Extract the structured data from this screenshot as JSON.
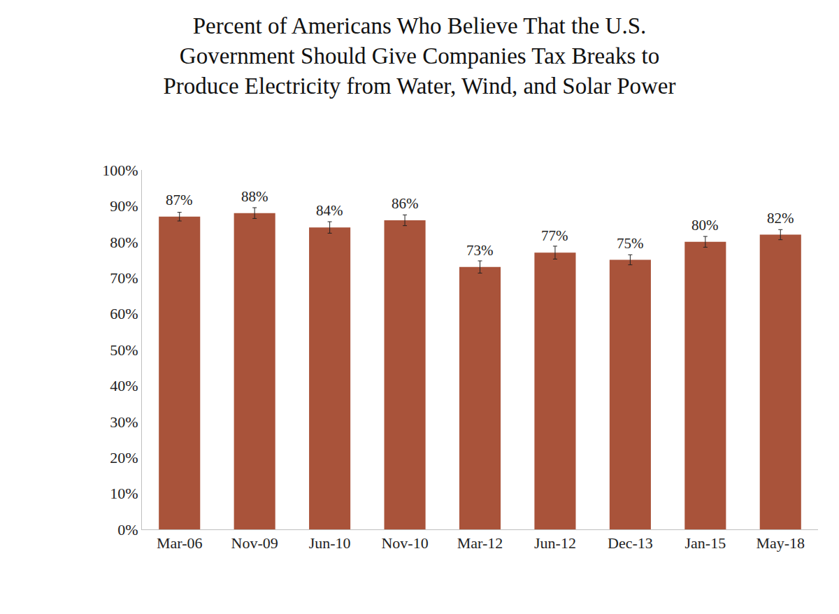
{
  "chart_data": {
    "type": "bar",
    "title": [
      "Percent of Americans Who Believe That the U.S.",
      "Government Should Give Companies Tax Breaks to",
      "Produce Electricity from Water, Wind, and Solar Power"
    ],
    "categories": [
      "Mar-06",
      "Nov-09",
      "Jun-10",
      "Nov-10",
      "Mar-12",
      "Jun-12",
      "Dec-13",
      "Jan-15",
      "May-18"
    ],
    "values": [
      87,
      88,
      84,
      86,
      73,
      77,
      75,
      80,
      82
    ],
    "value_labels": [
      "87%",
      "88%",
      "84%",
      "86%",
      "73%",
      "77%",
      "75%",
      "80%",
      "82%"
    ],
    "errors": [
      1.2,
      1.5,
      1.6,
      1.5,
      1.7,
      1.8,
      1.4,
      1.5,
      1.4
    ],
    "color": "#a9533a",
    "ylim": [
      0,
      100
    ],
    "yticks": [
      {
        "value": 0,
        "label": "0%"
      },
      {
        "value": 10,
        "label": "10%"
      },
      {
        "value": 20,
        "label": "20%"
      },
      {
        "value": 30,
        "label": "30%"
      },
      {
        "value": 40,
        "label": "40%"
      },
      {
        "value": 50,
        "label": "50%"
      },
      {
        "value": 60,
        "label": "60%"
      },
      {
        "value": 70,
        "label": "70%"
      },
      {
        "value": 80,
        "label": "80%"
      },
      {
        "value": 90,
        "label": "90%"
      },
      {
        "value": 100,
        "label": "100%"
      }
    ],
    "grid": false,
    "data_labels": true
  }
}
